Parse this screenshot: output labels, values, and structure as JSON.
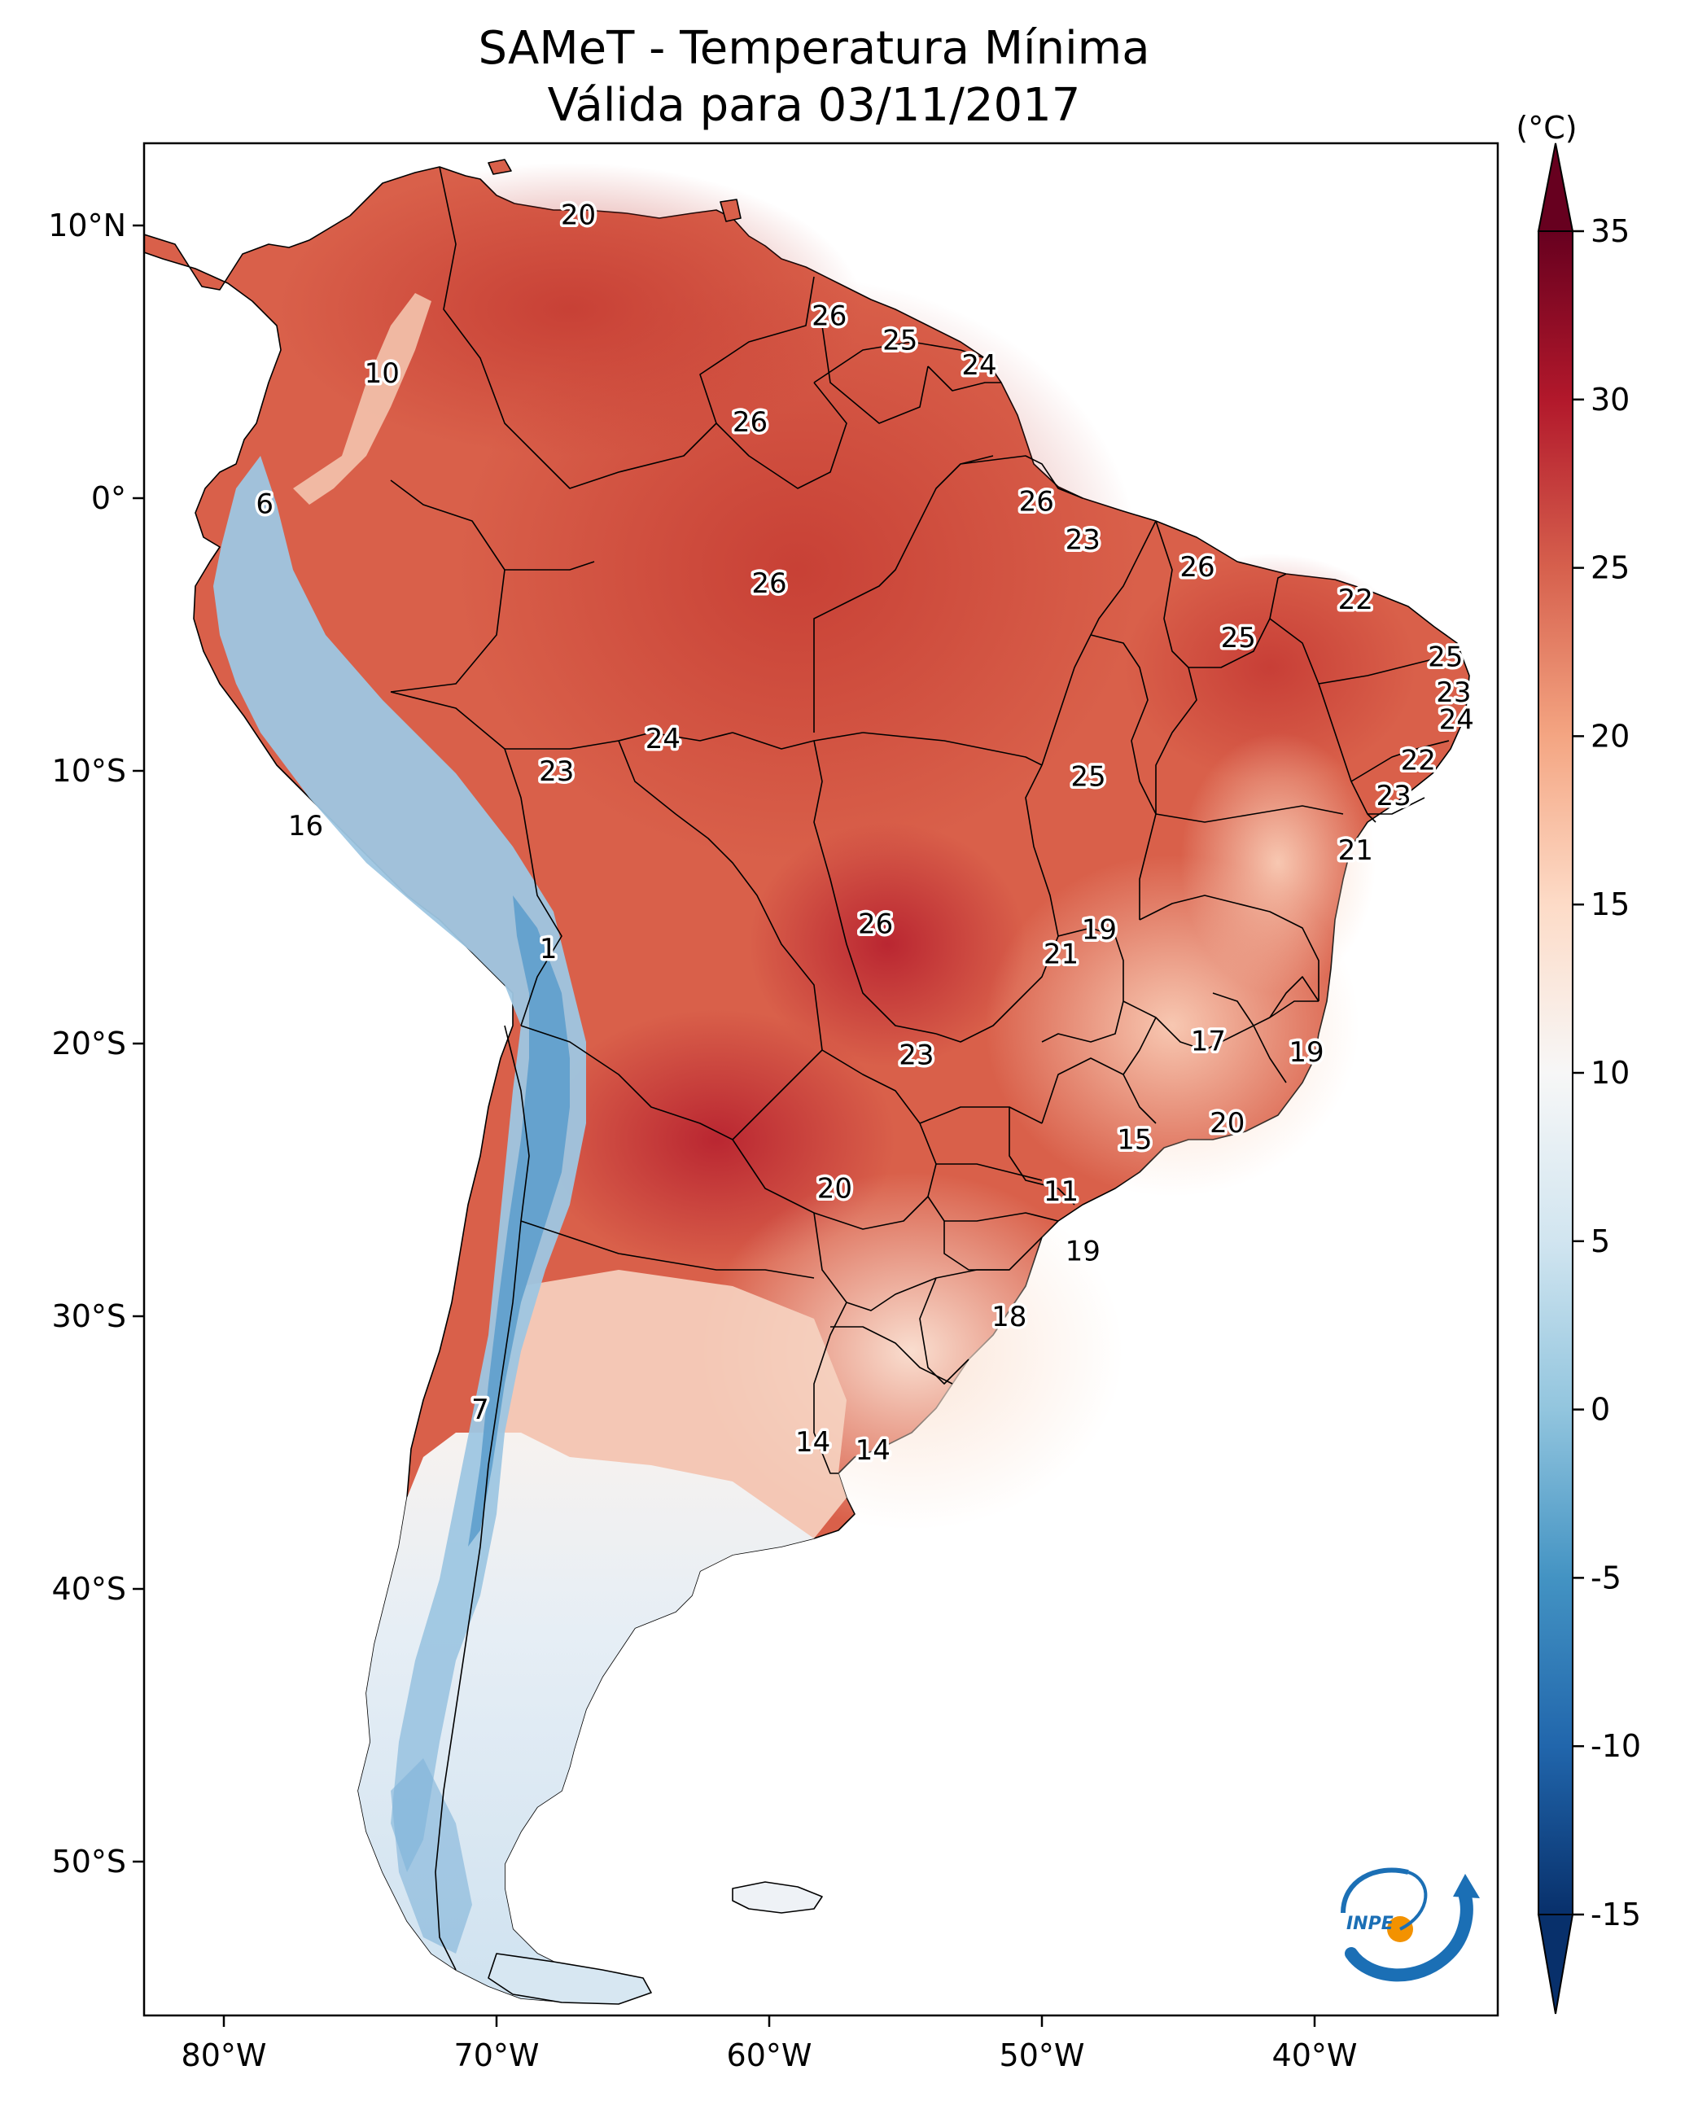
{
  "title": {
    "line1": "SAMeT - Temperatura Mínima",
    "line2": "Válida para 03/11/2017"
  },
  "units_label": "(°C)",
  "lon_ticks": [
    "80°W",
    "70°W",
    "60°W",
    "50°W",
    "40°W"
  ],
  "lat_ticks": [
    "10°N",
    "0°",
    "10°S",
    "20°S",
    "30°S",
    "40°S",
    "50°S"
  ],
  "colorbar": {
    "ticks": [
      "35",
      "30",
      "25",
      "20",
      "15",
      "10",
      "5",
      "0",
      "-5",
      "-10",
      "-15"
    ],
    "min": -15,
    "max": 35,
    "colors": [
      "#08306b",
      "#2166ac",
      "#4393c3",
      "#92c5de",
      "#d1e5f0",
      "#f7f7f7",
      "#fddbc7",
      "#f4a582",
      "#d6604d",
      "#b2182b",
      "#67001f"
    ]
  },
  "logo": {
    "text": "INPE",
    "icon": "inpe-logo-icon"
  },
  "city_values": [
    {
      "label": "20",
      "lon": -67.0,
      "lat": 10.4
    },
    {
      "label": "10",
      "lon": -74.2,
      "lat": 4.6
    },
    {
      "label": "26",
      "lon": -57.8,
      "lat": 6.7
    },
    {
      "label": "25",
      "lon": -55.2,
      "lat": 5.8
    },
    {
      "label": "24",
      "lon": -52.3,
      "lat": 4.9
    },
    {
      "label": "26",
      "lon": -60.7,
      "lat": 2.8
    },
    {
      "label": "6",
      "lon": -78.5,
      "lat": -0.2
    },
    {
      "label": "26",
      "lon": -50.2,
      "lat": -0.1
    },
    {
      "label": "23",
      "lon": -48.5,
      "lat": -1.5
    },
    {
      "label": "26",
      "lon": -60.0,
      "lat": -3.1
    },
    {
      "label": "26",
      "lon": -44.3,
      "lat": -2.5
    },
    {
      "label": "22",
      "lon": -38.5,
      "lat": -3.7
    },
    {
      "label": "25",
      "lon": -42.8,
      "lat": -5.1
    },
    {
      "label": "25",
      "lon": -35.2,
      "lat": -5.8
    },
    {
      "label": "23",
      "lon": -34.9,
      "lat": -7.1
    },
    {
      "label": "24",
      "lon": -34.8,
      "lat": -8.1
    },
    {
      "label": "24",
      "lon": -63.9,
      "lat": -8.8
    },
    {
      "label": "23",
      "lon": -67.8,
      "lat": -10.0
    },
    {
      "label": "25",
      "lon": -48.3,
      "lat": -10.2
    },
    {
      "label": "22",
      "lon": -36.2,
      "lat": -9.6
    },
    {
      "label": "23",
      "lon": -37.1,
      "lat": -10.9
    },
    {
      "label": "16",
      "lon": -77.0,
      "lat": -12.0
    },
    {
      "label": "21",
      "lon": -38.5,
      "lat": -12.9
    },
    {
      "label": "26",
      "lon": -56.1,
      "lat": -15.6
    },
    {
      "label": "19",
      "lon": -47.9,
      "lat": -15.8
    },
    {
      "label": "21",
      "lon": -49.3,
      "lat": -16.7
    },
    {
      "label": "1",
      "lon": -68.1,
      "lat": -16.5
    },
    {
      "label": "17",
      "lon": -43.9,
      "lat": -19.9
    },
    {
      "label": "19",
      "lon": -40.3,
      "lat": -20.3
    },
    {
      "label": "23",
      "lon": -54.6,
      "lat": -20.4
    },
    {
      "label": "20",
      "lon": -43.2,
      "lat": -22.9
    },
    {
      "label": "15",
      "lon": -46.6,
      "lat": -23.5
    },
    {
      "label": "20",
      "lon": -57.6,
      "lat": -25.3
    },
    {
      "label": "11",
      "lon": -49.3,
      "lat": -25.4
    },
    {
      "label": "19",
      "lon": -48.5,
      "lat": -27.6
    },
    {
      "label": "18",
      "lon": -51.2,
      "lat": -30.0
    },
    {
      "label": "7",
      "lon": -70.6,
      "lat": -33.4
    },
    {
      "label": "14",
      "lon": -58.4,
      "lat": -34.6
    },
    {
      "label": "14",
      "lon": -56.2,
      "lat": -34.9
    }
  ]
}
